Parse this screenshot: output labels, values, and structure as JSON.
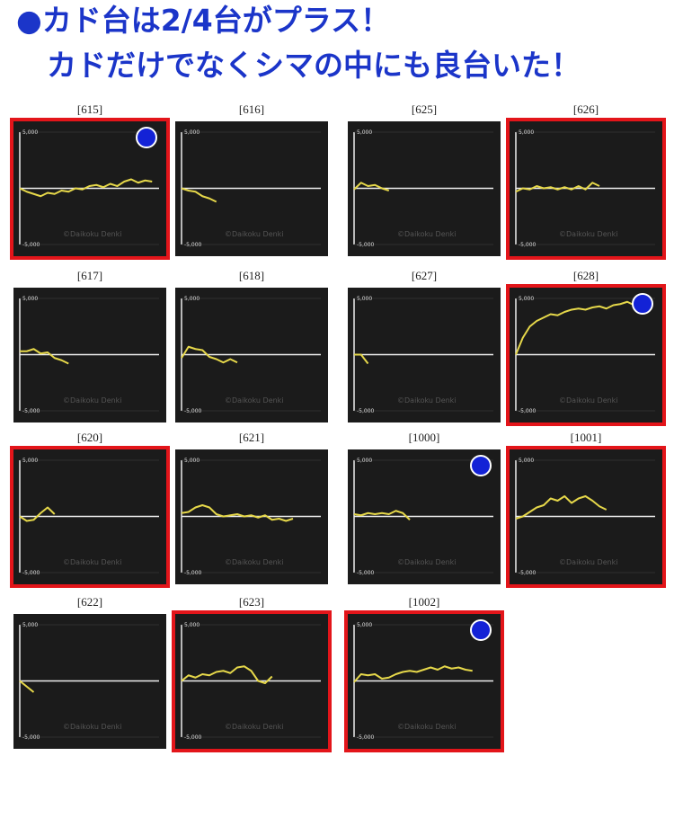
{
  "header": {
    "lines": [
      "●カド台は2/4台がプラス！",
      "カドだけでなくシマの中にも良台いた！"
    ]
  },
  "chart_data": [
    {
      "type": "line",
      "title": "[615]",
      "xlim": [
        0,
        20
      ],
      "ylim": [
        -5000,
        5000
      ],
      "yticks": [
        {
          "value": 5000,
          "label": "5,000"
        },
        {
          "value": -5000,
          "label": "-5,000"
        }
      ],
      "series": [
        {
          "color": "#e6d84a",
          "values": [
            0,
            -300,
            -500,
            -700,
            -400,
            -500,
            -200,
            -300,
            0,
            -100,
            200,
            300,
            100,
            400,
            200,
            600,
            800,
            500,
            700,
            600
          ]
        }
      ],
      "watermark": "©Daikoku Denki",
      "highlight": true,
      "marker": true
    },
    {
      "type": "line",
      "title": "[616]",
      "xlim": [
        0,
        20
      ],
      "ylim": [
        -5000,
        5000
      ],
      "yticks": [
        {
          "value": 5000,
          "label": "5,000"
        },
        {
          "value": -5000,
          "label": "-5,000"
        }
      ],
      "series": [
        {
          "color": "#e6d84a",
          "values": [
            0,
            -200,
            -300,
            -700,
            -900,
            -1200
          ]
        }
      ],
      "watermark": "©Daikoku Denki",
      "highlight": false,
      "marker": false
    },
    {
      "type": "line",
      "title": "[625]",
      "xlim": [
        0,
        20
      ],
      "ylim": [
        -5000,
        5000
      ],
      "yticks": [
        {
          "value": 5000,
          "label": "5,000"
        },
        {
          "value": -5000,
          "label": "-5,000"
        }
      ],
      "series": [
        {
          "color": "#e6d84a",
          "values": [
            -100,
            500,
            200,
            300,
            0,
            -200
          ]
        }
      ],
      "watermark": "©Daikoku Denki",
      "highlight": false,
      "marker": false
    },
    {
      "type": "line",
      "title": "[626]",
      "xlim": [
        0,
        20
      ],
      "ylim": [
        -5000,
        5000
      ],
      "yticks": [
        {
          "value": 5000,
          "label": "5,000"
        },
        {
          "value": -5000,
          "label": "-5,000"
        }
      ],
      "series": [
        {
          "color": "#e6d84a",
          "values": [
            -300,
            0,
            -100,
            200,
            0,
            100,
            -100,
            100,
            -100,
            200,
            -100,
            500,
            200
          ]
        }
      ],
      "watermark": "©Daikoku Denki",
      "highlight": true,
      "marker": false
    },
    {
      "type": "line",
      "title": "[617]",
      "xlim": [
        0,
        20
      ],
      "ylim": [
        -5000,
        5000
      ],
      "yticks": [
        {
          "value": 5000,
          "label": "5,000"
        },
        {
          "value": -5000,
          "label": "-5,000"
        }
      ],
      "series": [
        {
          "color": "#e6d84a",
          "values": [
            300,
            300,
            500,
            100,
            200,
            -300,
            -500,
            -800
          ]
        }
      ],
      "watermark": "©Daikoku Denki",
      "highlight": false,
      "marker": false
    },
    {
      "type": "line",
      "title": "[618]",
      "xlim": [
        0,
        20
      ],
      "ylim": [
        -5000,
        5000
      ],
      "yticks": [
        {
          "value": 5000,
          "label": "5,000"
        },
        {
          "value": -5000,
          "label": "-5,000"
        }
      ],
      "series": [
        {
          "color": "#e6d84a",
          "values": [
            -300,
            700,
            500,
            400,
            -200,
            -400,
            -700,
            -400,
            -700
          ]
        }
      ],
      "watermark": "©Daikoku Denki",
      "highlight": false,
      "marker": false
    },
    {
      "type": "line",
      "title": "[627]",
      "xlim": [
        0,
        20
      ],
      "ylim": [
        -5000,
        5000
      ],
      "yticks": [
        {
          "value": 5000,
          "label": "5,000"
        },
        {
          "value": -5000,
          "label": "-5,000"
        }
      ],
      "series": [
        {
          "color": "#e6d84a",
          "values": [
            0,
            0,
            -800
          ]
        }
      ],
      "watermark": "©Daikoku Denki",
      "highlight": false,
      "marker": false
    },
    {
      "type": "line",
      "title": "[628]",
      "xlim": [
        0,
        20
      ],
      "ylim": [
        -5000,
        5000
      ],
      "yticks": [
        {
          "value": 5000,
          "label": "5,000"
        },
        {
          "value": -5000,
          "label": "-5,000"
        }
      ],
      "series": [
        {
          "color": "#e6d84a",
          "values": [
            0,
            1500,
            2500,
            3000,
            3300,
            3600,
            3500,
            3800,
            4000,
            4100,
            4000,
            4200,
            4300,
            4100,
            4400,
            4500,
            4700,
            4400,
            4600
          ]
        }
      ],
      "watermark": "©Daikoku Denki",
      "highlight": true,
      "marker": true
    },
    {
      "type": "line",
      "title": "[620]",
      "xlim": [
        0,
        20
      ],
      "ylim": [
        -5000,
        5000
      ],
      "yticks": [
        {
          "value": 5000,
          "label": "5,000"
        },
        {
          "value": -5000,
          "label": "-5,000"
        }
      ],
      "series": [
        {
          "color": "#e6d84a",
          "values": [
            0,
            -400,
            -300,
            300,
            800,
            200
          ]
        }
      ],
      "watermark": "©Daikoku Denki",
      "highlight": true,
      "marker": false
    },
    {
      "type": "line",
      "title": "[621]",
      "xlim": [
        0,
        20
      ],
      "ylim": [
        -5000,
        5000
      ],
      "yticks": [
        {
          "value": 5000,
          "label": "5,000"
        },
        {
          "value": -5000,
          "label": "-5,000"
        }
      ],
      "series": [
        {
          "color": "#e6d84a",
          "values": [
            300,
            400,
            800,
            1000,
            800,
            200,
            0,
            100,
            200,
            0,
            100,
            -100,
            100,
            -300,
            -200,
            -400,
            -200
          ]
        }
      ],
      "watermark": "©Daikoku Denki",
      "highlight": false,
      "marker": false
    },
    {
      "type": "line",
      "title": "[1000]",
      "xlim": [
        0,
        20
      ],
      "ylim": [
        -5000,
        5000
      ],
      "yticks": [
        {
          "value": 5000,
          "label": "5,000"
        },
        {
          "value": -5000,
          "label": "-5,000"
        }
      ],
      "series": [
        {
          "color": "#e6d84a",
          "values": [
            200,
            100,
            300,
            200,
            300,
            200,
            500,
            300,
            -300
          ]
        }
      ],
      "watermark": "©Daikoku Denki",
      "highlight": false,
      "marker": true
    },
    {
      "type": "line",
      "title": "[1001]",
      "xlim": [
        0,
        20
      ],
      "ylim": [
        -5000,
        5000
      ],
      "yticks": [
        {
          "value": 5000,
          "label": "5,000"
        },
        {
          "value": -5000,
          "label": "-5,000"
        }
      ],
      "series": [
        {
          "color": "#e6d84a",
          "values": [
            -200,
            0,
            400,
            800,
            1000,
            1600,
            1400,
            1800,
            1200,
            1600,
            1800,
            1400,
            900,
            600
          ]
        }
      ],
      "watermark": "©Daikoku Denki",
      "highlight": true,
      "marker": false
    },
    {
      "type": "line",
      "title": "[622]",
      "xlim": [
        0,
        20
      ],
      "ylim": [
        -5000,
        5000
      ],
      "yticks": [
        {
          "value": 5000,
          "label": "5,000"
        },
        {
          "value": -5000,
          "label": "-5,000"
        }
      ],
      "series": [
        {
          "color": "#e6d84a",
          "values": [
            0,
            -500,
            -1000
          ]
        }
      ],
      "watermark": "©Daikoku Denki",
      "highlight": false,
      "marker": false
    },
    {
      "type": "line",
      "title": "[623]",
      "xlim": [
        0,
        20
      ],
      "ylim": [
        -5000,
        5000
      ],
      "yticks": [
        {
          "value": 5000,
          "label": "5,000"
        },
        {
          "value": -5000,
          "label": "-5,000"
        }
      ],
      "series": [
        {
          "color": "#e6d84a",
          "values": [
            0,
            500,
            300,
            600,
            500,
            800,
            900,
            700,
            1200,
            1300,
            900,
            0,
            -200,
            400
          ]
        }
      ],
      "watermark": "©Daikoku Denki",
      "highlight": true,
      "marker": false
    },
    {
      "type": "line",
      "title": "[1002]",
      "xlim": [
        0,
        20
      ],
      "ylim": [
        -5000,
        5000
      ],
      "yticks": [
        {
          "value": 5000,
          "label": "5,000"
        },
        {
          "value": -5000,
          "label": "-5,000"
        }
      ],
      "series": [
        {
          "color": "#e6d84a",
          "values": [
            -100,
            600,
            500,
            600,
            200,
            300,
            600,
            800,
            900,
            800,
            1000,
            1200,
            1000,
            1300,
            1100,
            1200,
            1000,
            900
          ]
        }
      ],
      "watermark": "©Daikoku Denki",
      "highlight": true,
      "marker": true
    }
  ]
}
